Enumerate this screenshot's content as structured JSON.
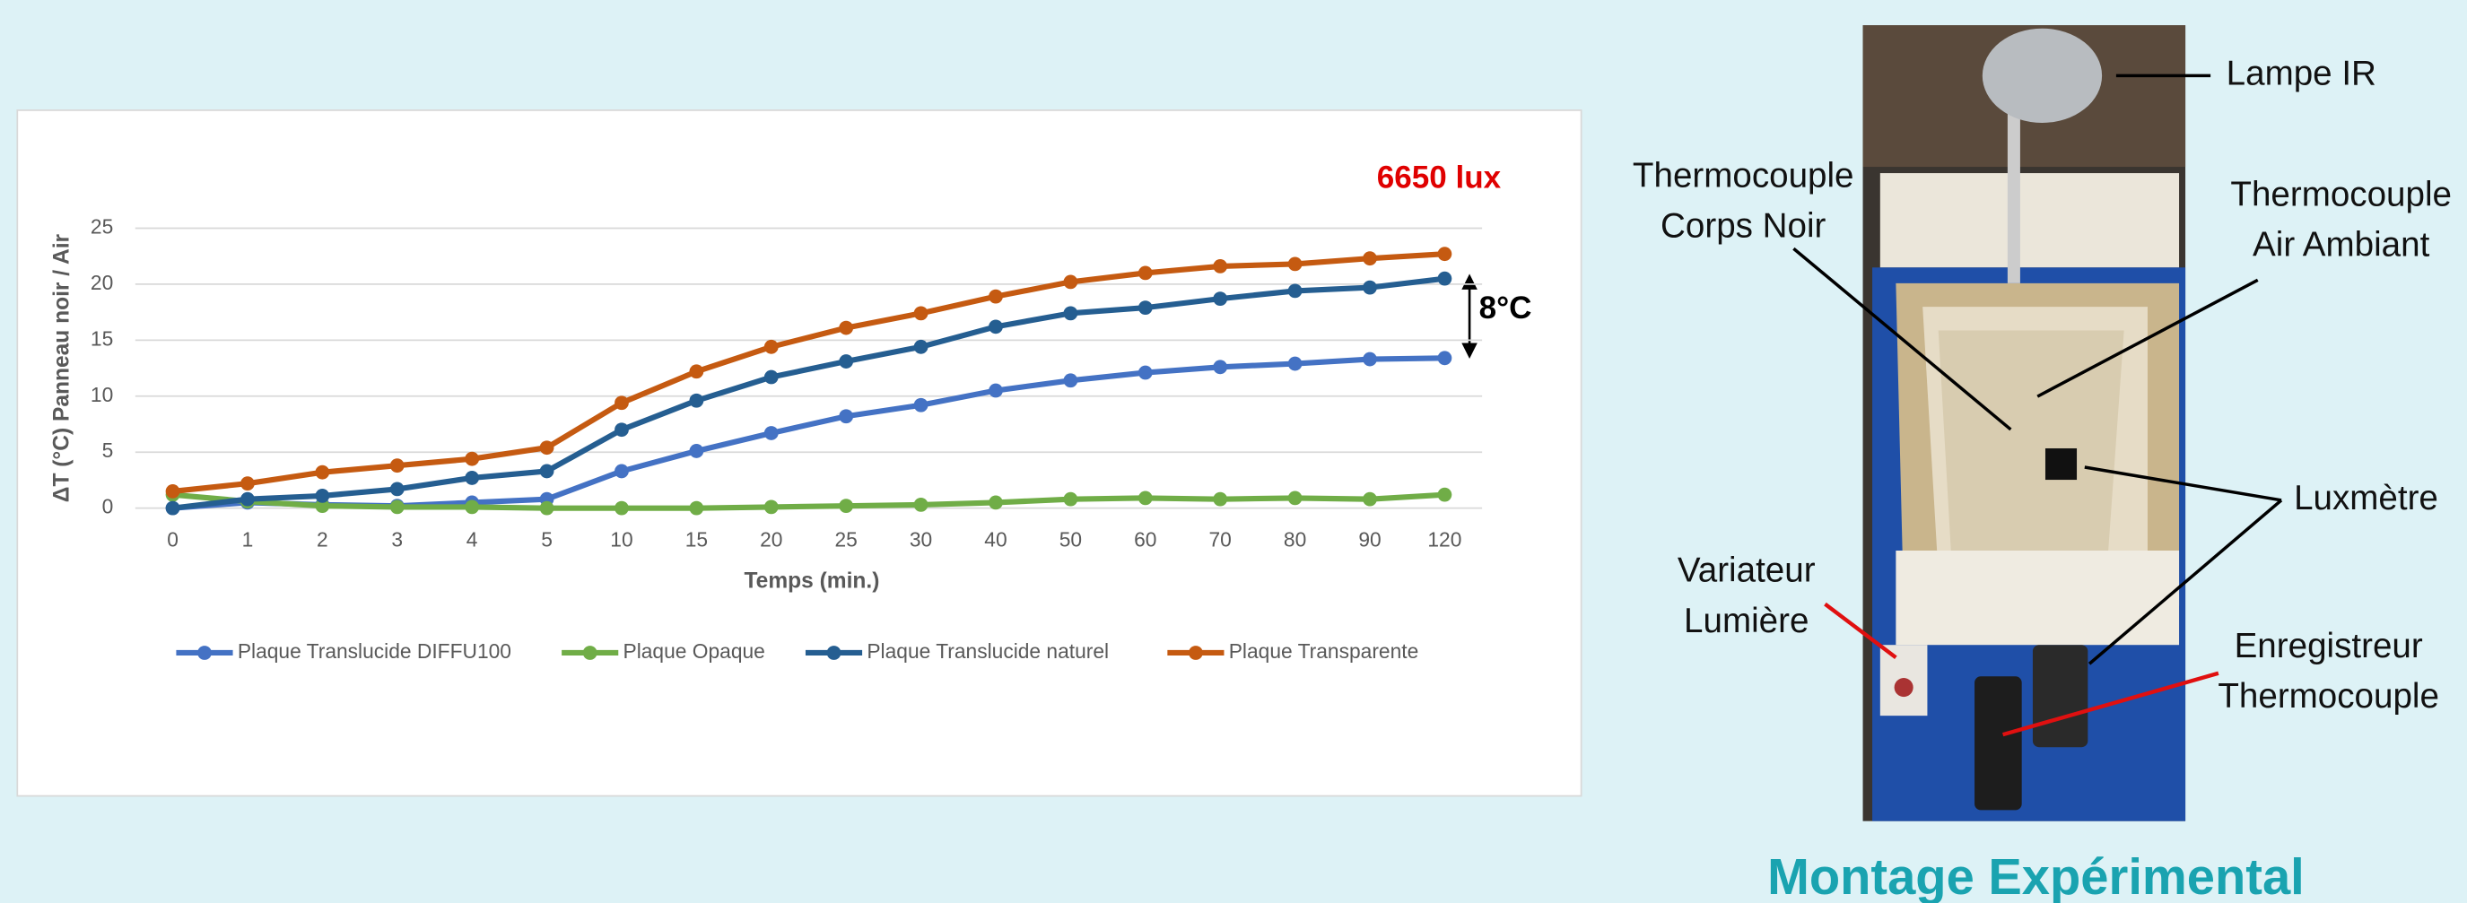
{
  "chart_data": {
    "type": "line",
    "categories": [
      "0",
      "1",
      "2",
      "3",
      "4",
      "5",
      "10",
      "15",
      "20",
      "25",
      "30",
      "40",
      "50",
      "60",
      "70",
      "80",
      "90",
      "120"
    ],
    "xlabel": "Temps (min.)",
    "ylabel": "ΔT (°C) Panneau noir / Air",
    "ylim": [
      0,
      25
    ],
    "yticks": [
      0,
      5,
      10,
      15,
      20,
      25
    ],
    "grid": true,
    "legend": "bottom",
    "annotations": [
      "6650 lux",
      "8°C"
    ],
    "series": [
      {
        "name": "Plaque Translucide DIFFU100",
        "color": "#4472c4",
        "values": [
          0,
          0.5,
          0.3,
          0.2,
          0.5,
          0.8,
          3.3,
          5.1,
          6.7,
          8.2,
          9.2,
          10.5,
          11.4,
          12.1,
          12.6,
          12.9,
          13.3,
          13.4
        ]
      },
      {
        "name": "Plaque Opaque",
        "color": "#70ad47",
        "values": [
          1.2,
          0.6,
          0.2,
          0.1,
          0.1,
          0,
          0,
          0,
          0.1,
          0.2,
          0.3,
          0.5,
          0.8,
          0.9,
          0.8,
          0.9,
          0.8,
          1.2
        ]
      },
      {
        "name": "Plaque Translucide naturel",
        "color": "#255e91",
        "values": [
          0,
          0.8,
          1.1,
          1.7,
          2.7,
          3.3,
          7.0,
          9.6,
          11.7,
          13.1,
          14.4,
          16.2,
          17.4,
          17.9,
          18.7,
          19.4,
          19.7,
          20.5
        ]
      },
      {
        "name": "Plaque Transparente",
        "color": "#c55a11",
        "values": [
          1.5,
          2.2,
          3.2,
          3.8,
          4.4,
          5.4,
          9.4,
          12.2,
          14.4,
          16.1,
          17.4,
          18.9,
          20.2,
          21.0,
          21.6,
          21.8,
          22.3,
          22.7
        ]
      }
    ]
  },
  "photo": {
    "caption": "Montage Expérimental",
    "labels": [
      {
        "lines": [
          "Lampe IR"
        ]
      },
      {
        "lines": [
          "Thermocouple",
          "Corps Noir"
        ]
      },
      {
        "lines": [
          "Thermocouple",
          "Air Ambiant"
        ]
      },
      {
        "lines": [
          "Luxmètre"
        ]
      },
      {
        "lines": [
          "Variateur",
          "Lumière"
        ]
      },
      {
        "lines": [
          "Enregistreur",
          "Thermocouple"
        ]
      }
    ]
  }
}
